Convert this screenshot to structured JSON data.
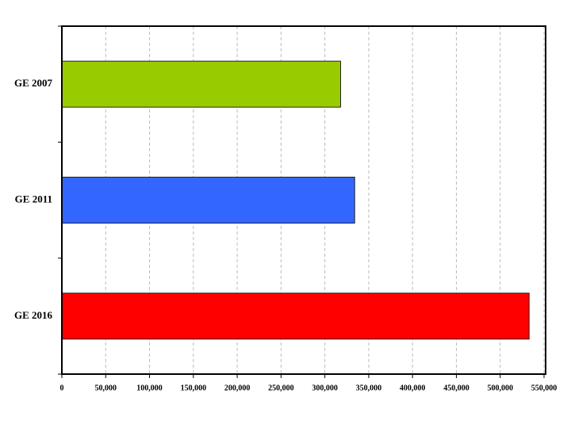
{
  "chart_data": {
    "type": "hbar",
    "categories": [
      "GE 2007",
      "GE 2011",
      "GE 2016"
    ],
    "values": [
      318000,
      334000,
      533000
    ],
    "colors": [
      "#99cc00",
      "#3366ff",
      "#ff0000"
    ],
    "xlim": [
      0,
      550000
    ],
    "xticks": [
      0,
      {
        "value": 50000,
        "label": "50,000"
      },
      {
        "value": 100000,
        "label": "100,000"
      },
      {
        "value": 150000,
        "label": "150,000"
      },
      {
        "value": 200000,
        "label": "200,000"
      },
      {
        "value": 250000,
        "label": "250,000"
      },
      {
        "value": 300000,
        "label": "300,000"
      },
      {
        "value": 350000,
        "label": "350,000"
      },
      {
        "value": 400000,
        "label": "400,000"
      },
      {
        "value": 450000,
        "label": "450,000"
      },
      {
        "value": 500000,
        "label": "500,000"
      },
      {
        "value": 550000,
        "label": "550,000"
      }
    ],
    "grid": true
  }
}
